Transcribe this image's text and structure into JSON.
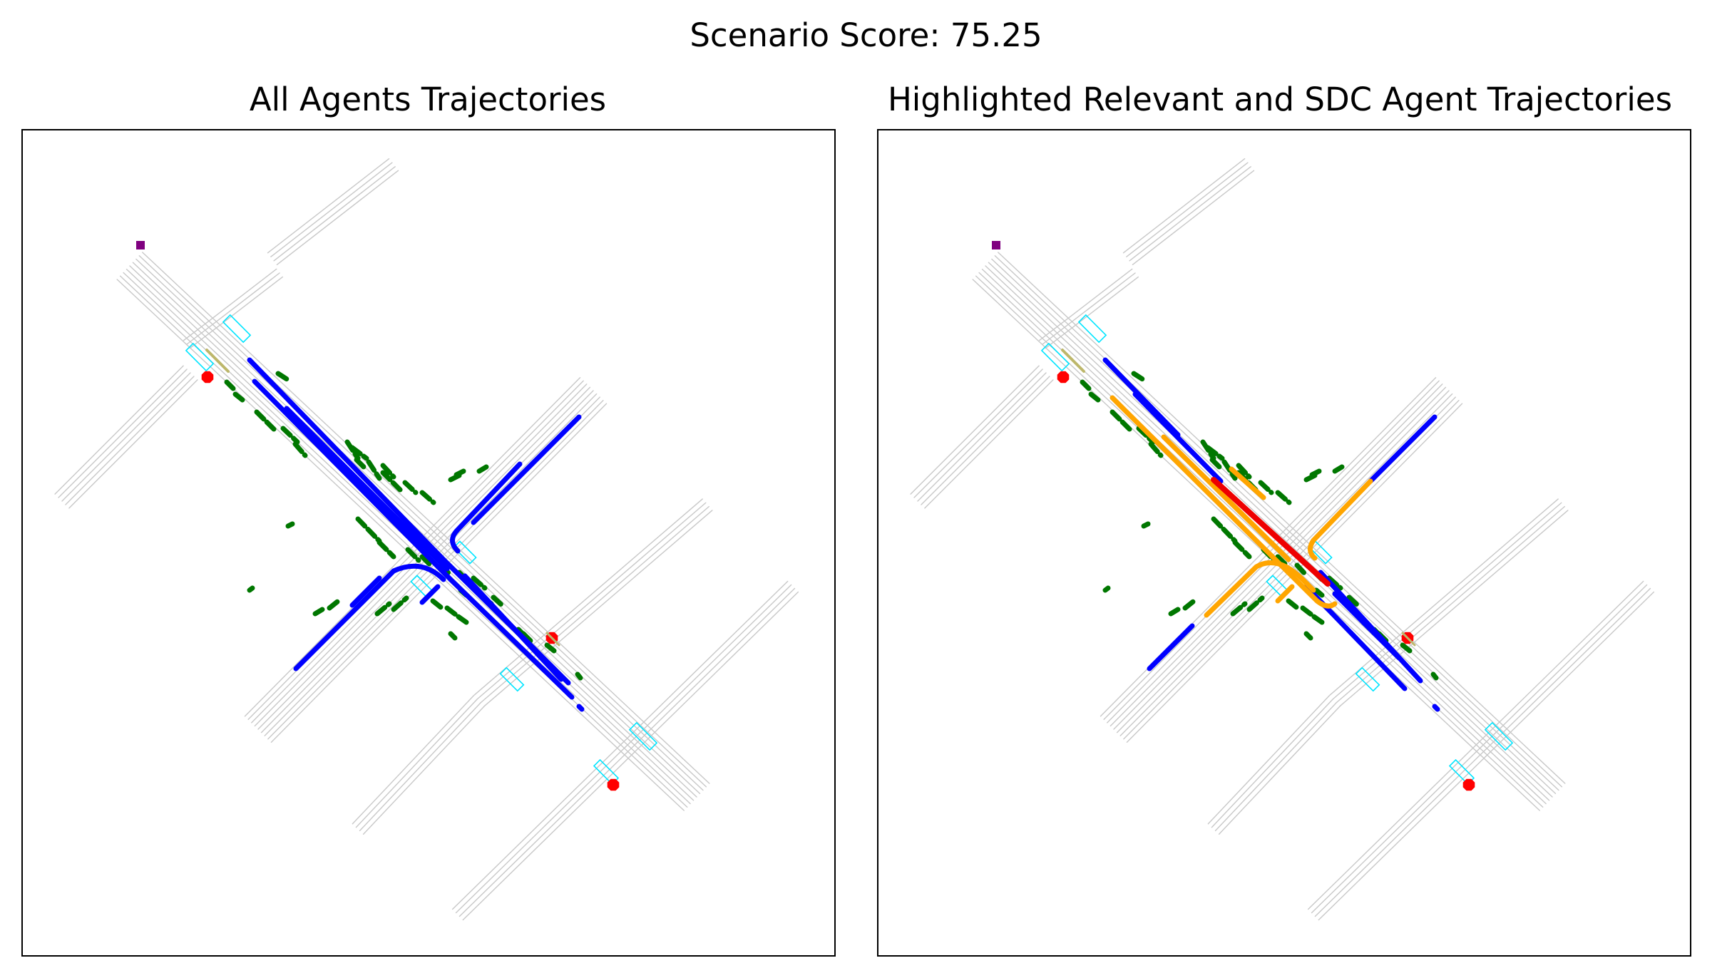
{
  "suptitle": "Scenario Score: 75.25",
  "panels": [
    {
      "id": "left",
      "title": "All Agents Trajectories"
    },
    {
      "id": "right",
      "title": "Highlighted Relevant and SDC Agent Trajectories"
    }
  ],
  "colors": {
    "road": "#c8c8c8",
    "crosswalk": "#00e5ff",
    "stop_sign": "#ff0000",
    "sdc_marker": "#800080",
    "vehicle": "#0000ff",
    "pedestrian": "#007700",
    "relevant": "#ffa500",
    "sdc": "#ee0000",
    "cyclist": "#bdb76b"
  },
  "legend": []
}
